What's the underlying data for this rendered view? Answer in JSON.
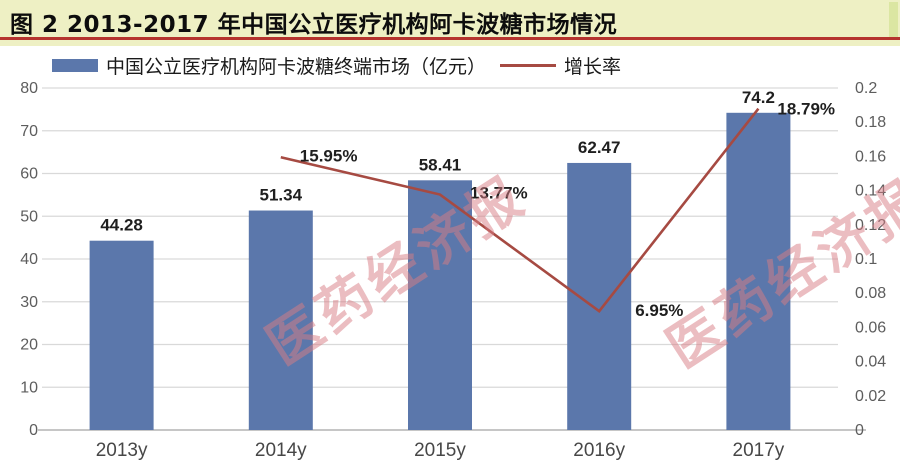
{
  "header": {
    "title": "图 2  2013-2017 年中国公立医疗机构阿卡波糖市场情况",
    "bar_background": "#eef0c4",
    "underline_color": "#b5342e"
  },
  "legend": {
    "bar_label": "中国公立医疗机构阿卡波糖终端市场（亿元）",
    "line_label": "增长率"
  },
  "watermark": {
    "text": "医药经济报",
    "color": "#d97d85"
  },
  "chart_data": {
    "type": "bar",
    "subtype": "bar+line combo, secondary right axis",
    "title": "图 2  2013-2017 年中国公立医疗机构阿卡波糖市场情况",
    "categories": [
      "2013y",
      "2014y",
      "2015y",
      "2016y",
      "2017y"
    ],
    "series": [
      {
        "name": "中国公立医疗机构阿卡波糖终端市场（亿元）",
        "type": "bar",
        "axis": "left",
        "color": "#5b77ab",
        "values": [
          44.28,
          51.34,
          58.41,
          62.47,
          74.2
        ],
        "labels": [
          "44.28",
          "51.34",
          "58.41",
          "62.47",
          "74.2"
        ]
      },
      {
        "name": "增长率",
        "type": "line",
        "axis": "right",
        "color": "#a64a42",
        "values": [
          null,
          0.1595,
          0.1377,
          0.0695,
          0.1879
        ],
        "labels": [
          null,
          "15.95%",
          "13.77%",
          "6.95%",
          "18.79%"
        ],
        "label_offsets": [
          [
            0,
            0
          ],
          [
            19,
            4
          ],
          [
            30,
            4
          ],
          [
            36,
            5
          ],
          [
            19,
            6
          ]
        ]
      }
    ],
    "left_axis": {
      "min": 0,
      "max": 80,
      "step": 10,
      "ticks": [
        "0",
        "10",
        "20",
        "30",
        "40",
        "50",
        "60",
        "70",
        "80"
      ]
    },
    "right_axis": {
      "min": 0,
      "max": 0.2,
      "step": 0.02,
      "ticks": [
        "0",
        "0.02",
        "0.04",
        "0.06",
        "0.08",
        "0.1",
        "0.12",
        "0.14",
        "0.16",
        "0.18",
        "0.2"
      ]
    },
    "grid": true,
    "gridline_color": "#d9d9d9",
    "axisline_color": "#c6c6c6",
    "legend_position": "top-left"
  }
}
